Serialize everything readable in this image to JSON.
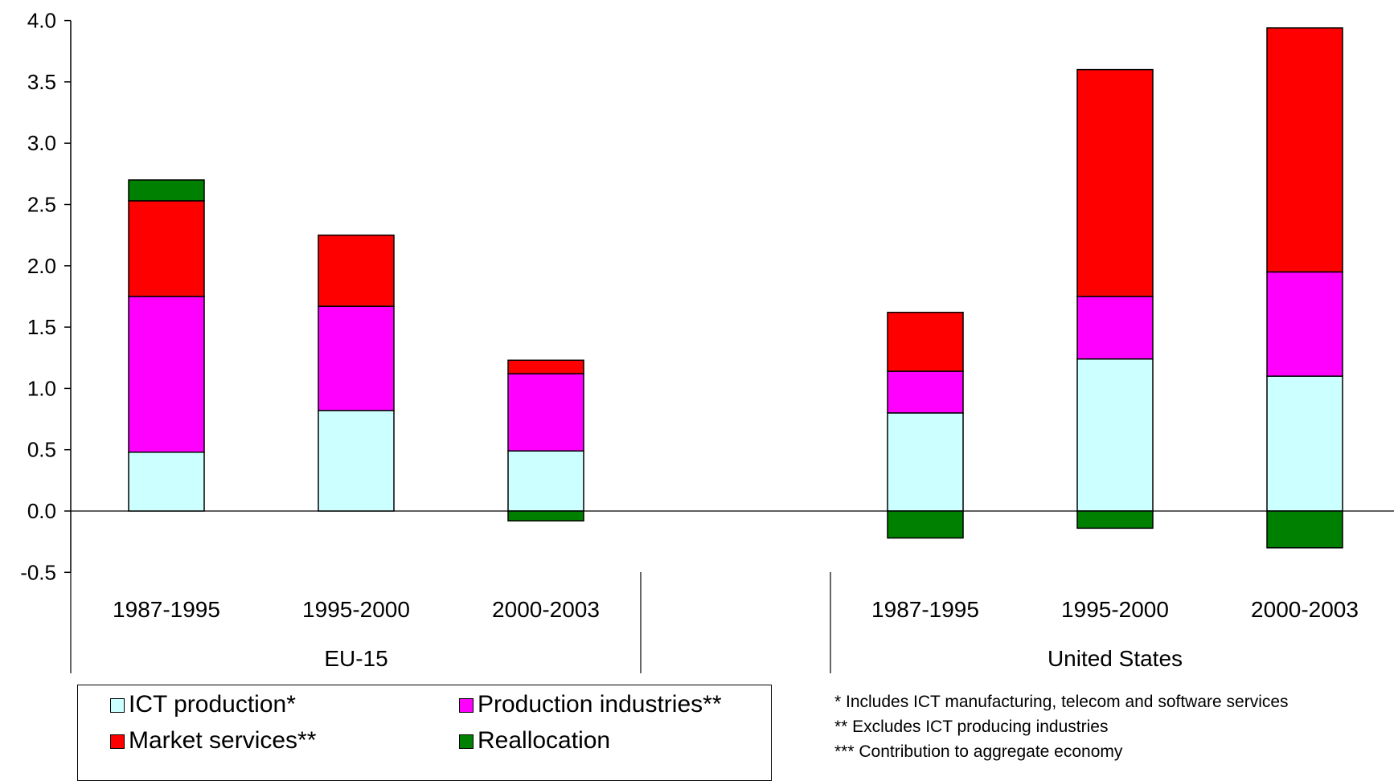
{
  "chart_data": {
    "type": "bar",
    "stacked": true,
    "title": "",
    "xlabel": "",
    "ylabel": "",
    "ylim": [
      -0.5,
      4.0
    ],
    "yticks": [
      "4.0",
      "3.5",
      "3.0",
      "2.5",
      "2.0",
      "1.5",
      "1.0",
      "0.5",
      "0.0",
      "-0.5"
    ],
    "groups": [
      {
        "name": "EU-15",
        "categories": [
          "1987-1995",
          "1995-2000",
          "2000-2003"
        ]
      },
      {
        "name": "United States",
        "categories": [
          "1987-1995",
          "1995-2000",
          "2000-2003"
        ]
      }
    ],
    "series": [
      {
        "name": "ICT production*",
        "color": "#CCFFFF",
        "values": [
          0.48,
          0.82,
          0.49,
          0.8,
          1.24,
          1.1
        ]
      },
      {
        "name": "Production industries**",
        "color": "#FF00FF",
        "values": [
          1.27,
          0.85,
          0.63,
          0.34,
          0.51,
          0.85
        ]
      },
      {
        "name": "Market services**",
        "color": "#FF0000",
        "values": [
          0.78,
          0.58,
          0.11,
          0.48,
          1.85,
          1.99
        ]
      },
      {
        "name": "Reallocation",
        "color": "#008000",
        "values": [
          0.17,
          0.0,
          -0.08,
          -0.22,
          -0.14,
          -0.3
        ]
      }
    ],
    "legend_position": "bottom-left",
    "grid": false
  },
  "footnotes": [
    "* Includes ICT manufacturing, telecom and software services",
    "** Excludes ICT producing industries",
    "*** Contribution to aggregate economy"
  ]
}
